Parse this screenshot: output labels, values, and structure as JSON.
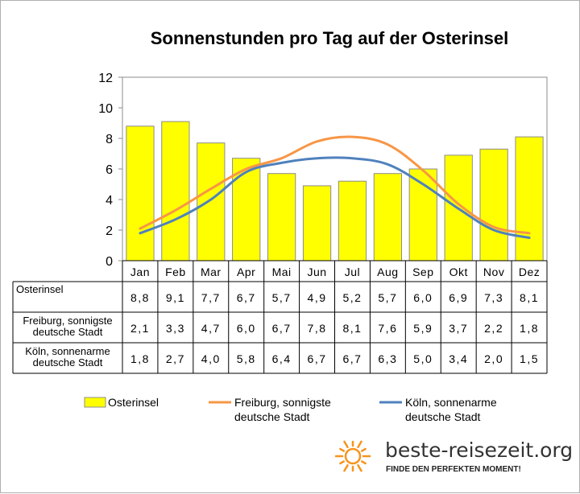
{
  "chart_data": {
    "type": "bar",
    "title": "Sonnenstunden pro Tag auf der Osterinsel",
    "categories": [
      "Jan",
      "Feb",
      "Mar",
      "Apr",
      "Mai",
      "Jun",
      "Jul",
      "Aug",
      "Sep",
      "Okt",
      "Nov",
      "Dez"
    ],
    "ylim": [
      0,
      12
    ],
    "yticks": [
      0,
      2,
      4,
      6,
      8,
      10,
      12
    ],
    "grid": false,
    "legend_position": "bottom",
    "series": [
      {
        "name": "Osterinsel",
        "table_label": [
          "Osterinsel"
        ],
        "kind": "bar",
        "color": "#ffff00",
        "values": [
          8.8,
          9.1,
          7.7,
          6.7,
          5.7,
          4.9,
          5.2,
          5.7,
          6.0,
          6.9,
          7.3,
          8.1
        ],
        "labels": [
          "8,8",
          "9,1",
          "7,7",
          "6,7",
          "5,7",
          "4,9",
          "5,2",
          "5,7",
          "6,0",
          "6,9",
          "7,3",
          "8,1"
        ]
      },
      {
        "name": "Freiburg, sonnigste deutsche Stadt",
        "table_label": [
          "Freiburg, sonnigste",
          "deutsche Stadt"
        ],
        "legend_label": [
          "Freiburg, sonnigste",
          "deutsche Stadt"
        ],
        "kind": "line",
        "color": "#f79646",
        "values": [
          2.1,
          3.3,
          4.7,
          6.0,
          6.7,
          7.8,
          8.1,
          7.6,
          5.9,
          3.7,
          2.2,
          1.8
        ],
        "labels": [
          "2,1",
          "3,3",
          "4,7",
          "6,0",
          "6,7",
          "7,8",
          "8,1",
          "7,6",
          "5,9",
          "3,7",
          "2,2",
          "1,8"
        ]
      },
      {
        "name": "Köln, sonnenarme deutsche Stadt",
        "table_label": [
          "Köln, sonnenarme",
          "deutsche Stadt"
        ],
        "legend_label": [
          "Köln, sonnenarme",
          "deutsche Stadt"
        ],
        "kind": "line",
        "color": "#4f81bd",
        "values": [
          1.8,
          2.7,
          4.0,
          5.8,
          6.4,
          6.7,
          6.7,
          6.3,
          5.0,
          3.4,
          2.0,
          1.5
        ],
        "labels": [
          "1,8",
          "2,7",
          "4,0",
          "5,8",
          "6,4",
          "6,7",
          "6,7",
          "6,3",
          "5,0",
          "3,4",
          "2,0",
          "1,5"
        ]
      }
    ]
  },
  "branding": {
    "site": "beste-reisezeit.org",
    "slogan": "FINDE DEN PERFEKTEN MOMENT!",
    "sun_color": "#f7941d"
  }
}
